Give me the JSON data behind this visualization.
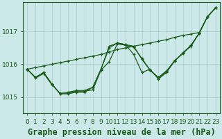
{
  "background_color": "#cce8e8",
  "grid_color": "#aacccc",
  "line_color": "#1a5c1a",
  "title": "Graphe pression niveau de la mer (hPa)",
  "xlim": [
    -0.5,
    23.5
  ],
  "ylim": [
    1014.5,
    1017.9
  ],
  "yticks": [
    1015,
    1016,
    1017
  ],
  "xticks": [
    0,
    1,
    2,
    3,
    4,
    5,
    6,
    7,
    8,
    9,
    10,
    11,
    12,
    13,
    14,
    15,
    16,
    17,
    18,
    19,
    20,
    21,
    22,
    23
  ],
  "s1": [
    1015.85,
    1015.6,
    1015.75,
    1015.4,
    1015.1,
    1015.1,
    1015.15,
    1015.15,
    1015.3,
    1015.85,
    1016.55,
    1016.65,
    1016.6,
    1016.3,
    1015.75,
    1015.85,
    1015.55,
    1015.75,
    1016.1,
    1016.35,
    1016.55,
    1016.95,
    1017.45,
    1017.72
  ],
  "s2": [
    1015.85,
    1015.6,
    1015.75,
    1015.4,
    1015.1,
    1015.15,
    1015.2,
    1015.2,
    1015.3,
    1015.85,
    1016.5,
    1016.65,
    1016.6,
    1016.55,
    1016.15,
    1015.82,
    1015.6,
    1015.8,
    1016.1,
    1016.35,
    1016.58,
    1016.95,
    1017.45,
    1017.72
  ],
  "s3": [
    1015.85,
    1015.9,
    1015.95,
    1016.0,
    1016.05,
    1016.1,
    1016.15,
    1016.2,
    1016.25,
    1016.3,
    1016.38,
    1016.45,
    1016.5,
    1016.55,
    1016.6,
    1016.65,
    1016.7,
    1016.75,
    1016.82,
    1016.88,
    1016.92,
    1016.97,
    1017.45,
    1017.72
  ],
  "s4": [
    1015.85,
    1015.58,
    1015.72,
    1015.38,
    1015.12,
    1015.12,
    1015.18,
    1015.18,
    1015.22,
    1015.82,
    1016.08,
    1016.62,
    1016.58,
    1016.52,
    1016.18,
    1015.82,
    1015.58,
    1015.78,
    1016.12,
    1016.32,
    1016.58,
    1016.95,
    1017.45,
    1017.72
  ],
  "title_fontsize": 8.5,
  "tick_fontsize": 6.5
}
